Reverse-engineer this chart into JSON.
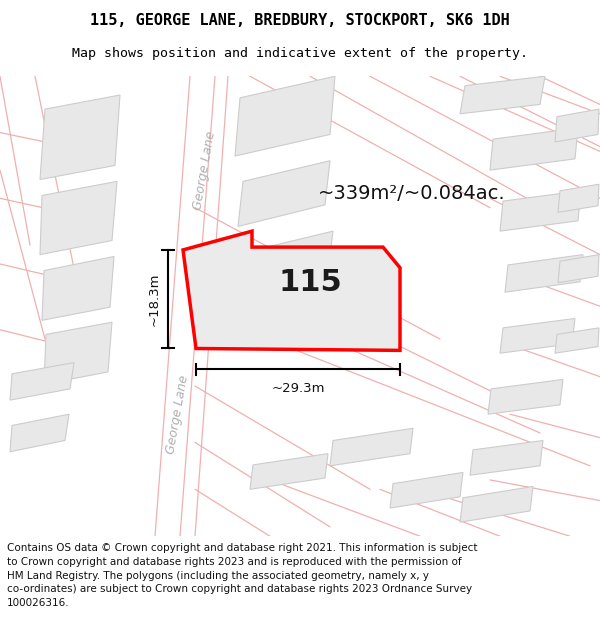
{
  "title_line1": "115, GEORGE LANE, BREDBURY, STOCKPORT, SK6 1DH",
  "title_line2": "Map shows position and indicative extent of the property.",
  "footer_text": "Contains OS data © Crown copyright and database right 2021. This information is subject\nto Crown copyright and database rights 2023 and is reproduced with the permission of\nHM Land Registry. The polygons (including the associated geometry, namely x, y\nco-ordinates) are subject to Crown copyright and database rights 2023 Ordnance Survey\n100026316.",
  "area_label": "~339m²/~0.084ac.",
  "number_label": "115",
  "width_label": "~29.3m",
  "height_label": "~18.3m",
  "street_label": "George Lane",
  "map_bg": "#ffffff",
  "building_fill": "#e8e8e8",
  "building_stroke": "#cccccc",
  "road_stroke": "#f0b0b0",
  "property_stroke": "#ff0000",
  "property_fill": "#ebebeb",
  "title_fontsize": 11,
  "subtitle_fontsize": 9.5,
  "footer_fontsize": 7.5,
  "area_fontsize": 14,
  "number_fontsize": 22,
  "dim_fontsize": 9.5,
  "street_fontsize": 9
}
